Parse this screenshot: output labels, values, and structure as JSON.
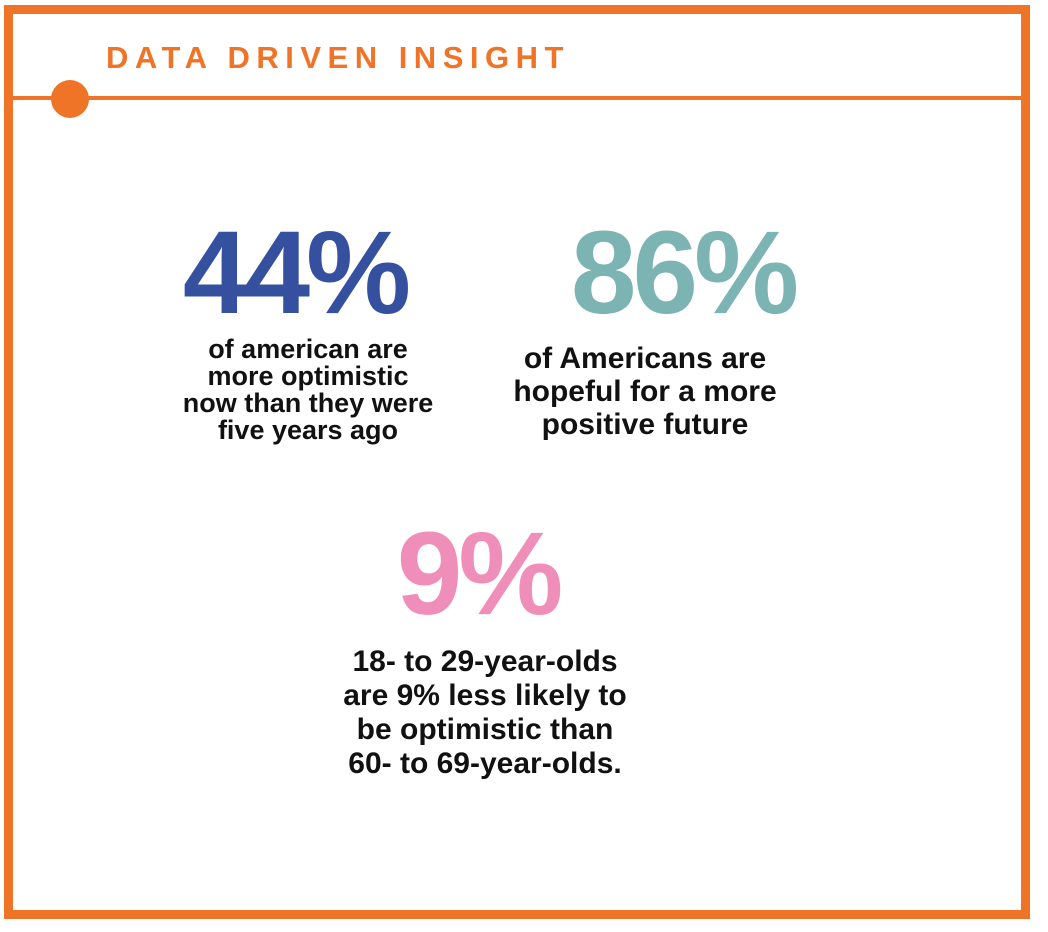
{
  "header": {
    "title": "DATA DRIVEN INSIGHT"
  },
  "colors": {
    "accent": "#f07428",
    "stat_blue": "#34509e",
    "stat_teal": "#7cb4b4",
    "stat_pink": "#ef8fb9",
    "caption_text": "#111111"
  },
  "stats": [
    {
      "value": "44%",
      "color": "#34509e",
      "caption_lines": [
        "of american are",
        "more optimistic",
        "now than they were",
        "five years ago"
      ]
    },
    {
      "value": "86%",
      "color": "#7cb4b4",
      "caption_lines": [
        "of Americans are",
        "hopeful for a more",
        "positive future"
      ]
    },
    {
      "value": "9%",
      "color": "#ef8fb9",
      "caption_lines": [
        "18- to 29-year-olds",
        "are 9% less likely to",
        "be optimistic than",
        "60- to 69-year-olds."
      ]
    }
  ]
}
